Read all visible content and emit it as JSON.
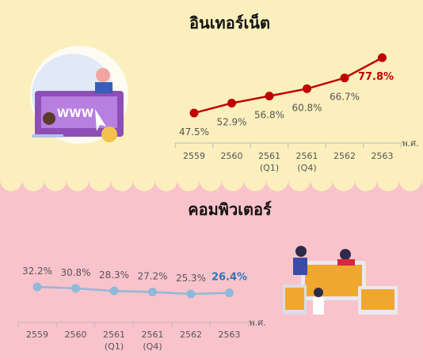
{
  "chart_data": [
    {
      "type": "line",
      "title": "อินเทอร์เน็ต",
      "x_label": "พ.ศ.",
      "categories": [
        "2559",
        "2560",
        "2561 (Q1)",
        "2561 (Q4)",
        "2562",
        "2563"
      ],
      "values": [
        47.5,
        52.9,
        56.8,
        60.8,
        66.7,
        77.8
      ],
      "value_labels": [
        "47.5%",
        "52.9%",
        "56.8%",
        "60.8%",
        "66.7%",
        "77.8%"
      ],
      "color": "#c00000",
      "highlight_color": "#c00000"
    },
    {
      "type": "line",
      "title": "คอมพิวเตอร์",
      "x_label": "พ.ศ.",
      "categories": [
        "2559",
        "2560",
        "2561 (Q1)",
        "2561 (Q4)",
        "2562",
        "2563"
      ],
      "values": [
        32.2,
        30.8,
        28.3,
        27.2,
        25.3,
        26.4
      ],
      "value_labels": [
        "32.2%",
        "30.8%",
        "28.3%",
        "27.2%",
        "25.3%",
        "26.4%"
      ],
      "color": "#8fb9d8",
      "highlight_color": "#2e75b6"
    }
  ]
}
